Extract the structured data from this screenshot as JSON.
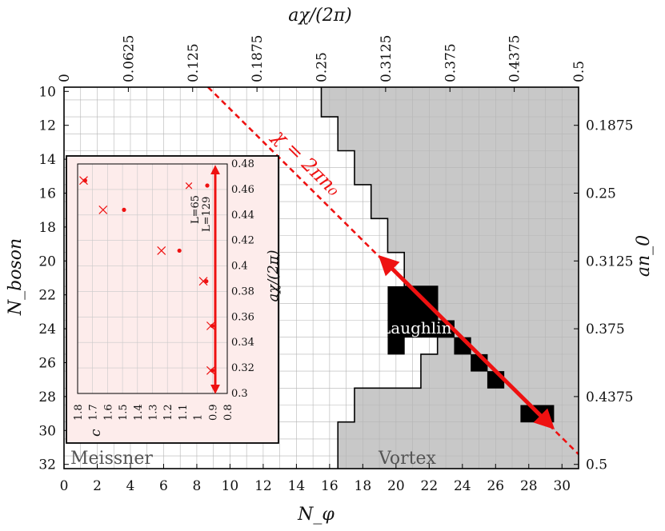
{
  "chart_data": {
    "type": "heatmap",
    "x_axis": {
      "label": "N_φ",
      "ticks": [
        0,
        2,
        4,
        6,
        8,
        10,
        12,
        14,
        16,
        18,
        20,
        22,
        24,
        26,
        28,
        30
      ],
      "range": [
        0,
        31
      ]
    },
    "y_axis": {
      "label": "N_boson",
      "ticks": [
        10,
        12,
        14,
        16,
        18,
        20,
        22,
        24,
        26,
        28,
        30,
        32
      ],
      "range": [
        10,
        32
      ],
      "inverted": true
    },
    "top_axis": {
      "label": "aχ/(2π)",
      "ticks": [
        "0",
        "0.0625",
        "0.125",
        "0.1875",
        "0.25",
        "0.3125",
        "0.375",
        "0.4375",
        "0.5"
      ]
    },
    "right_axis": {
      "label": "an_0",
      "ticks": [
        "0.1875",
        "0.25",
        "0.3125",
        "0.375",
        "0.4375",
        "0.5"
      ]
    },
    "phase_boundary": {
      "description": "first vortex N_φ for each N_boson",
      "n_boson": [
        10,
        11,
        12,
        13,
        14,
        15,
        16,
        17,
        18,
        19,
        20,
        21,
        22,
        23,
        24,
        25,
        26,
        27,
        28,
        29,
        30,
        31,
        32
      ],
      "n_phi_start": [
        15.5,
        15.5,
        16.5,
        16.5,
        17.5,
        17.5,
        18.5,
        18.5,
        19.5,
        19.5,
        20.5,
        20.5,
        22.5,
        22.5,
        22.5,
        22.5,
        21.5,
        21.5,
        17.5,
        17.5,
        16.5,
        16.5,
        16.5
      ]
    },
    "laughlin_cells": [
      {
        "n_boson": 22,
        "n_phi": [
          20,
          21
        ]
      },
      {
        "n_boson": 23,
        "n_phi": [
          20,
          21,
          22
        ]
      },
      {
        "n_boson": 24,
        "n_phi": [
          20,
          23
        ]
      },
      {
        "n_boson": 25,
        "n_phi": [
          20,
          24
        ]
      },
      {
        "n_boson": 26,
        "n_phi": [
          25
        ]
      },
      {
        "n_boson": 27,
        "n_phi": [
          26
        ]
      },
      {
        "n_boson": 29,
        "n_phi": [
          28,
          29
        ]
      }
    ],
    "line_label": "χ = 2πn₀",
    "region_labels": {
      "left": "Meissner",
      "right": "Vortex",
      "phase": "Laughlin"
    },
    "inset": {
      "x_label": "c",
      "y_label": "aχ/(2π)",
      "x_ticks": [
        "1.8",
        "1.7",
        "1.6",
        "1.5",
        "1.4",
        "1.3",
        "1.2",
        "1.1",
        "1",
        "0.9",
        "0.8"
      ],
      "y_ticks": [
        "0.48",
        "0.46",
        "0.44",
        "0.42",
        "0.4",
        "0.38",
        "0.36",
        "0.34",
        "0.32",
        "0.3"
      ],
      "xlim": [
        1.8,
        0.8
      ],
      "ylim": [
        0.3,
        0.48
      ],
      "legend": [
        "L=65",
        "L=129"
      ],
      "series": [
        {
          "name": "L=65",
          "marker": "x",
          "points": [
            [
              1.76,
              0.467
            ],
            [
              1.63,
              0.444
            ],
            [
              1.24,
              0.412
            ],
            [
              0.96,
              0.388
            ],
            [
              0.91,
              0.353
            ],
            [
              0.91,
              0.318
            ]
          ]
        },
        {
          "name": "L=129",
          "marker": "dot",
          "points": [
            [
              1.75,
              0.467
            ],
            [
              1.49,
              0.444
            ],
            [
              1.12,
              0.412
            ],
            [
              0.94,
              0.388
            ],
            [
              0.9,
              0.353
            ],
            [
              0.9,
              0.318
            ]
          ]
        }
      ]
    }
  }
}
